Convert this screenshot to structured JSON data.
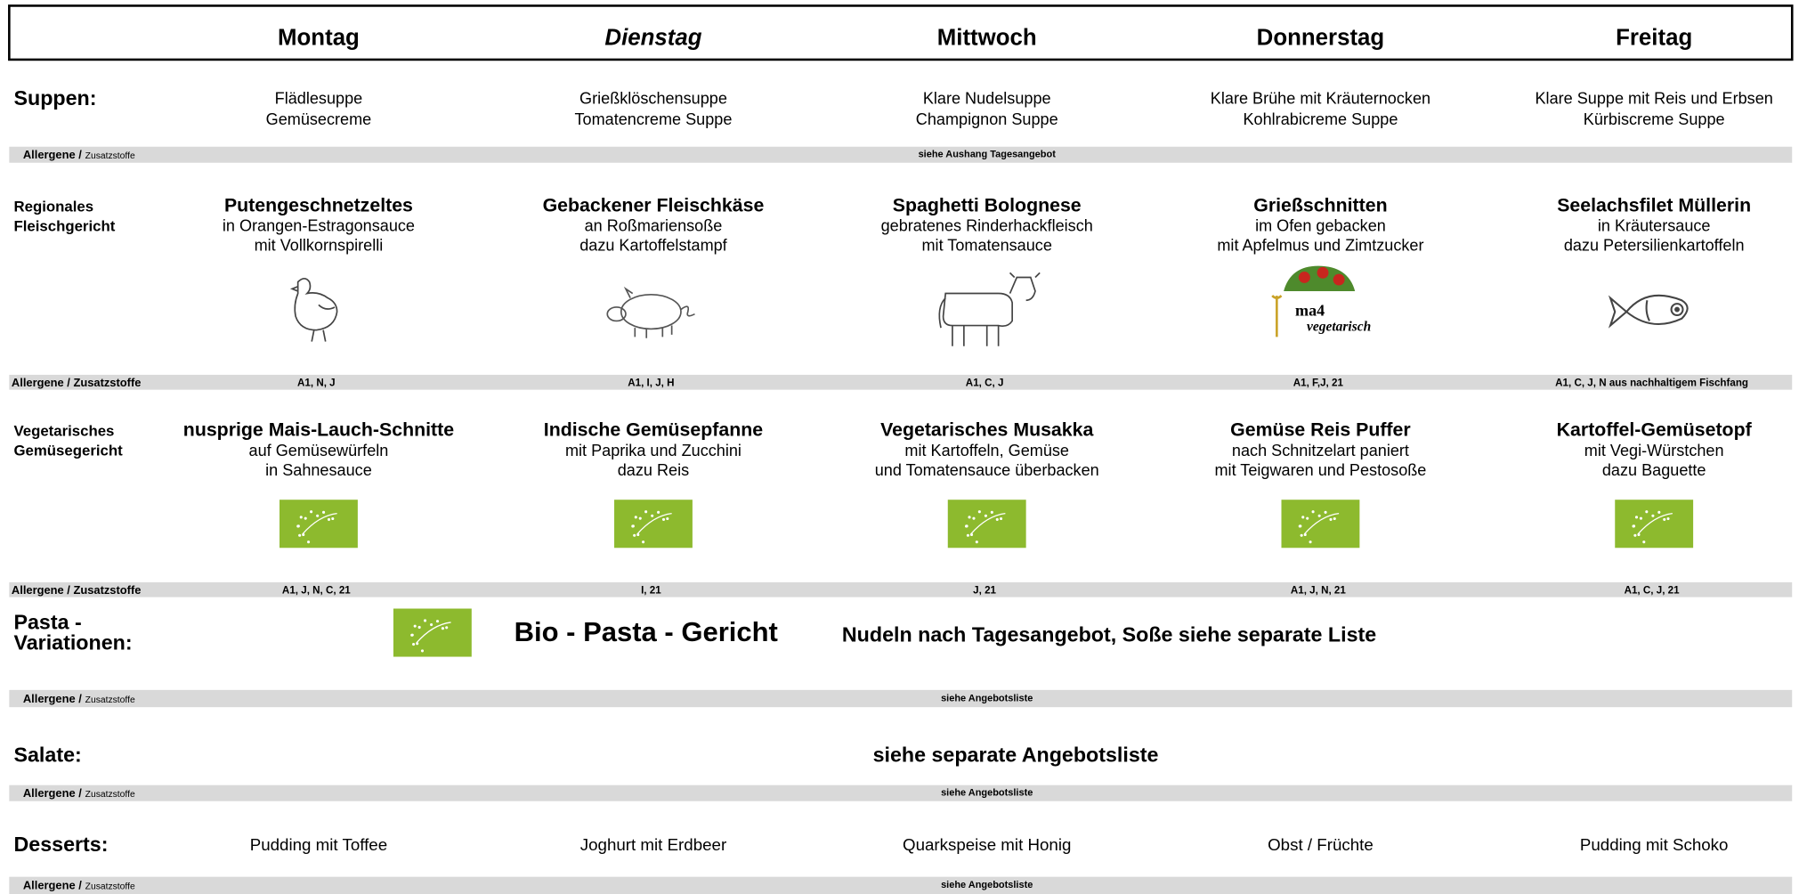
{
  "header": {
    "days": [
      "Montag",
      "Dienstag",
      "Mittwoch",
      "Donnerstag",
      "Freitag"
    ]
  },
  "sections": [
    {
      "label": [
        "Suppen:"
      ],
      "items": [
        [
          "Flädlesuppe",
          "Gemüsecreme"
        ],
        [
          "Grießklöschensuppe",
          "Tomatencreme Suppe"
        ],
        [
          "Klare Nudelsuppe",
          "Champignon Suppe"
        ],
        [
          "Klare Brühe mit Kräuternocken",
          "Kohlrabicreme Suppe"
        ],
        [
          "Klare Suppe mit Reis und Erbsen",
          "Kürbiscreme Suppe"
        ]
      ],
      "allergen_label": [
        "Allergene /",
        "Zusatzstoffe"
      ],
      "allergen_note": "siehe Aushang Tagesangebot"
    },
    {
      "label": [
        "Regionales",
        "Fleischgericht"
      ],
      "items": [
        {
          "title": "Putengeschnetzeltes",
          "lines": [
            "in Orangen-Estragonsauce",
            "mit Vollkornspirelli"
          ]
        },
        {
          "title": "Gebackener Fleischkäse",
          "lines": [
            "an Roßmariensoße",
            "dazu Kartoffelstampf"
          ]
        },
        {
          "title": "Spaghetti Bolognese",
          "lines": [
            "gebratenes Rinderhackfleisch",
            "mit Tomatensauce"
          ]
        },
        {
          "title": "Grießschnitten",
          "lines": [
            "im Ofen gebacken",
            "mit Apfelmus und Zimtzucker"
          ],
          "logo": [
            "ma4",
            "vegetarisch"
          ]
        },
        {
          "title": "Seelachsfilet Müllerin",
          "lines": [
            "in Kräutersauce",
            "dazu Petersilienkartoffeln"
          ]
        }
      ],
      "allergen_label": "Allergene / Zusatzstoffe",
      "allergens": [
        "A1, N, J",
        "A1, I, J, H",
        "A1, C, J",
        "A1, F,J, 21",
        "A1, C, J, N aus nachhaltigem Fischfang"
      ]
    },
    {
      "label": [
        "Vegetarisches",
        "Gemüsegericht"
      ],
      "items": [
        {
          "title": "nusprige Mais-Lauch-Schnitte",
          "lines": [
            "auf Gemüsewürfeln",
            "in Sahnesauce"
          ]
        },
        {
          "title": "Indische Gemüsepfanne",
          "lines": [
            "mit Paprika und Zucchini",
            "dazu Reis"
          ]
        },
        {
          "title": "Vegetarisches Musakka",
          "lines": [
            "mit Kartoffeln, Gemüse",
            "und Tomatensauce überbacken"
          ]
        },
        {
          "title": "Gemüse Reis Puffer",
          "lines": [
            "nach Schnitzelart paniert",
            "mit Teigwaren und Pestosoße"
          ]
        },
        {
          "title": "Kartoffel-Gemüsetopf",
          "lines": [
            "mit Vegi-Würstchen",
            "dazu Baguette"
          ]
        }
      ],
      "allergen_label": "Allergene / Zusatzstoffe",
      "allergens": [
        "A1, J, N, C, 21",
        "I, 21",
        "J, 21",
        "A1, J, N, 21",
        "A1, C, J, 21"
      ]
    },
    {
      "label": [
        "Pasta -",
        "Variationen:"
      ],
      "title": "Bio - Pasta - Gericht",
      "text": "Nudeln nach Tagesangebot, Soße siehe separate Liste",
      "allergen_label": [
        "Allergene /",
        "Zusatzstoffe"
      ],
      "allergen_note": "siehe Angebotsliste"
    },
    {
      "label": [
        "Salate:"
      ],
      "text": "siehe separate Angebotsliste",
      "allergen_label": [
        "Allergene /",
        "Zusatzstoffe"
      ],
      "allergen_note": "siehe Angebotsliste"
    },
    {
      "label": [
        "Desserts:"
      ],
      "items": [
        "Pudding mit Toffee",
        "Joghurt mit Erdbeer",
        "Quarkspeise mit Honig",
        "Obst / Früchte",
        "Pudding mit Schoko"
      ],
      "allergen_label": [
        "Allergene /",
        "Zusatzstoffe"
      ],
      "allergen_note": "siehe Angebotsliste"
    }
  ]
}
